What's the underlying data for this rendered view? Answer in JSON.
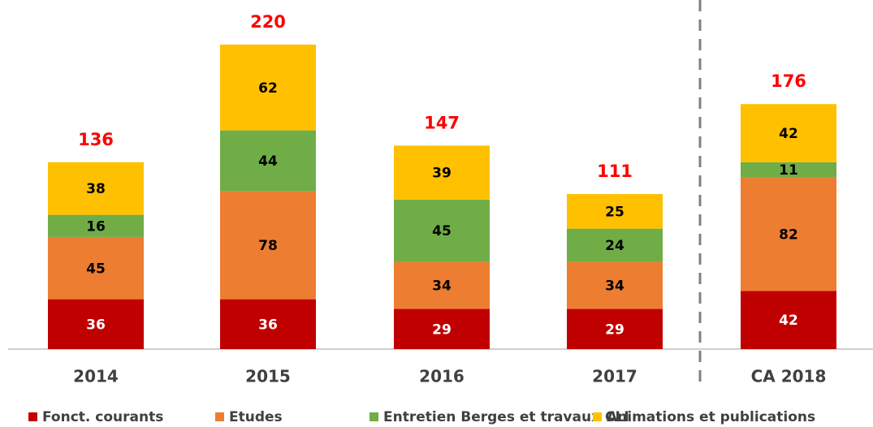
{
  "chart_data": {
    "type": "stacked_bar",
    "categories": [
      "2014",
      "2015",
      "2016",
      "2017",
      "CA 2018"
    ],
    "series": [
      {
        "name": "Fonct. courants",
        "color": "#c00000",
        "values": [
          36,
          36,
          29,
          29,
          42
        ]
      },
      {
        "name": "Etudes",
        "color": "#ed7d31",
        "values": [
          45,
          78,
          34,
          34,
          82
        ]
      },
      {
        "name": "Entretien Berges et travaux CLI",
        "color": "#70ad47",
        "values": [
          16,
          44,
          45,
          24,
          11
        ]
      },
      {
        "name": "Animations et publications",
        "color": "#ffc000",
        "values": [
          38,
          62,
          39,
          25,
          42
        ]
      }
    ],
    "totals": [
      136,
      220,
      147,
      111,
      176
    ],
    "legend": "bottom"
  }
}
